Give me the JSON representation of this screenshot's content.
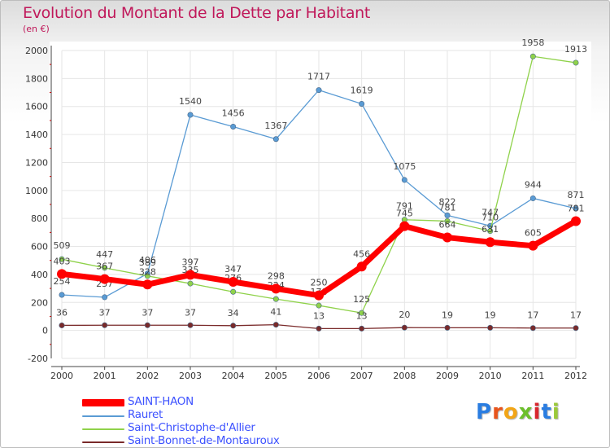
{
  "chart_data": {
    "type": "line",
    "title": "Evolution du Montant de la Dette par Habitant",
    "subtitle": "(en €)",
    "xlabel": "",
    "ylabel": "",
    "x": [
      "2000",
      "2001",
      "2002",
      "2003",
      "2004",
      "2005",
      "2006",
      "2007",
      "2008",
      "2009",
      "2010",
      "2011",
      "2012"
    ],
    "ylim": [
      -200,
      2000
    ],
    "yticks": [
      "-200",
      "0",
      "200",
      "400",
      "600",
      "800",
      "1000",
      "1200",
      "1400",
      "1600",
      "1800",
      "2000"
    ],
    "grid": true,
    "legend_position": "bottom-left",
    "series": [
      {
        "name": "SAINT-HAON",
        "color": "#ff0000",
        "values": [
          403,
          367,
          328,
          397,
          347,
          298,
          250,
          456,
          745,
          664,
          631,
          605,
          781
        ]
      },
      {
        "name": "Rauret",
        "color": "#5a9bd4",
        "values": [
          254,
          237,
          406,
          1540,
          1456,
          1367,
          1717,
          1619,
          1075,
          822,
          747,
          944,
          871
        ]
      },
      {
        "name": "Saint-Christophe-d'Allier",
        "color": "#8fd24a",
        "values": [
          509,
          447,
          389,
          335,
          276,
          224,
          178,
          125,
          791,
          781,
          710,
          1958,
          1913
        ]
      },
      {
        "name": "Saint-Bonnet-de-Montauroux",
        "color": "#7a2a2a",
        "values": [
          36,
          37,
          37,
          37,
          34,
          41,
          13,
          13,
          20,
          19,
          19,
          17,
          17
        ]
      }
    ]
  },
  "logo": {
    "text": "Proxiti"
  }
}
